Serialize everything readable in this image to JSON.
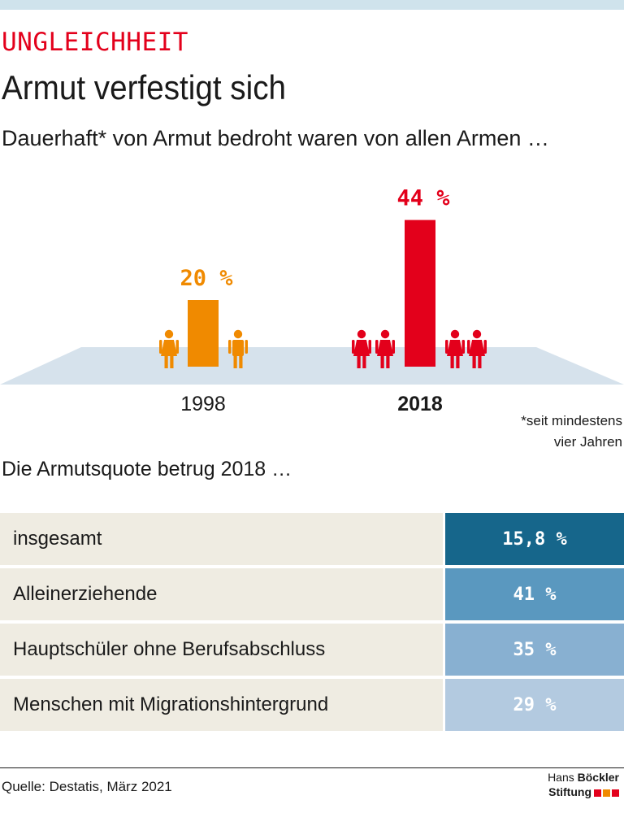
{
  "header": {
    "kicker": "UNGLEICHHEIT",
    "title": "Armut verfestigt sich",
    "subtitle": "Dauerhaft* von Armut bedroht waren von allen Armen …"
  },
  "chart_data": {
    "type": "bar",
    "title": "Dauerhaft* von Armut bedroht waren von allen Armen …",
    "categories": [
      "1998",
      "2018"
    ],
    "values": [
      20,
      44
    ],
    "value_labels": [
      "20 %",
      "44 %"
    ],
    "colors": [
      "#f08a00",
      "#e3001b"
    ],
    "unit": "%",
    "ylim": [
      0,
      50
    ],
    "grid": false
  },
  "footnote": {
    "line1": "*seit mindestens",
    "line2": "vier Jahren"
  },
  "table": {
    "title": "Die Armutsquote betrug 2018 …",
    "rows": [
      {
        "label": "insgesamt",
        "value": "15,8 %",
        "color": "#16668b"
      },
      {
        "label": "Alleinerziehende",
        "value": "41 %",
        "color": "#5a98bf"
      },
      {
        "label": "Hauptschüler ohne Berufsabschluss",
        "value": "35 %",
        "color": "#88b0d1"
      },
      {
        "label": "Menschen mit Migrationshintergrund",
        "value": "29 %",
        "color": "#b3cae0"
      }
    ]
  },
  "footer": {
    "source": "Quelle: Destatis, März 2021",
    "logo_line1_a": "Hans ",
    "logo_line1_b": "Böckler",
    "logo_line2": "Stiftung"
  }
}
